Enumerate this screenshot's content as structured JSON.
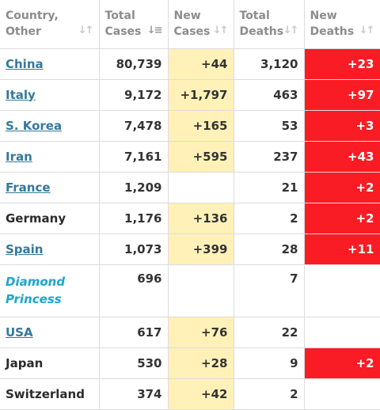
{
  "table": {
    "headers": [
      {
        "line1": "Country,",
        "line2": "Other",
        "sort_icon": "sort-arrows-icon"
      },
      {
        "line1": "Total",
        "line2": "Cases",
        "sort_icon": "sort-desc-active-icon"
      },
      {
        "line1": "New",
        "line2": "Cases",
        "sort_icon": "sort-arrows-icon"
      },
      {
        "line1": "Total",
        "line2": "Deaths",
        "sort_icon": "sort-arrows-icon"
      },
      {
        "line1": "New",
        "line2": "Deaths",
        "sort_icon": "sort-arrows-icon"
      }
    ],
    "rows": [
      {
        "country": "China",
        "link": true,
        "total_cases": "80,739",
        "new_cases": "+44",
        "total_deaths": "3,120",
        "new_deaths": "+23"
      },
      {
        "country": "Italy",
        "link": true,
        "total_cases": "9,172",
        "new_cases": "+1,797",
        "total_deaths": "463",
        "new_deaths": "+97"
      },
      {
        "country": "S. Korea",
        "link": true,
        "total_cases": "7,478",
        "new_cases": "+165",
        "total_deaths": "53",
        "new_deaths": "+3"
      },
      {
        "country": "Iran",
        "link": true,
        "total_cases": "7,161",
        "new_cases": "+595",
        "total_deaths": "237",
        "new_deaths": "+43"
      },
      {
        "country": "France",
        "link": true,
        "total_cases": "1,209",
        "new_cases": "",
        "total_deaths": "21",
        "new_deaths": "+2"
      },
      {
        "country": "Germany",
        "link": false,
        "total_cases": "1,176",
        "new_cases": "+136",
        "total_deaths": "2",
        "new_deaths": "+2"
      },
      {
        "country": "Spain",
        "link": true,
        "total_cases": "1,073",
        "new_cases": "+399",
        "total_deaths": "28",
        "new_deaths": "+11"
      },
      {
        "country_line1": "Diamond",
        "country_line2": "Princess",
        "ship": true,
        "total_cases": "696",
        "new_cases": "",
        "total_deaths": "7",
        "new_deaths": ""
      },
      {
        "country": "USA",
        "link": true,
        "total_cases": "617",
        "new_cases": "+76",
        "total_deaths": "22",
        "new_deaths": ""
      },
      {
        "country": "Japan",
        "link": false,
        "total_cases": "530",
        "new_cases": "+28",
        "total_deaths": "9",
        "new_deaths": "+2"
      },
      {
        "country": "Switzerland",
        "link": false,
        "total_cases": "374",
        "new_cases": "+42",
        "total_deaths": "2",
        "new_deaths": ""
      }
    ]
  },
  "colors": {
    "new_cases_highlight": "#fff1b8",
    "new_deaths_highlight": "#fa1c24",
    "link": "#33789c",
    "ship": "#1aa5cf"
  }
}
